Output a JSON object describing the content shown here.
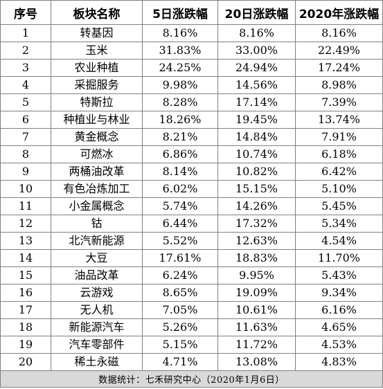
{
  "table": {
    "headers": [
      "序号",
      "板块名称",
      "5日涨跌幅",
      "20日涨跌幅",
      "2020年涨跌幅"
    ],
    "rows": [
      {
        "idx": "1",
        "name": "转基因",
        "d5": "8.16%",
        "d20": "8.16%",
        "y2020": "8.16%"
      },
      {
        "idx": "2",
        "name": "玉米",
        "d5": "31.83%",
        "d20": "33.00%",
        "y2020": "22.49%"
      },
      {
        "idx": "3",
        "name": "农业种植",
        "d5": "24.25%",
        "d20": "24.94%",
        "y2020": "17.24%"
      },
      {
        "idx": "4",
        "name": "采掘服务",
        "d5": "9.98%",
        "d20": "14.56%",
        "y2020": "8.98%"
      },
      {
        "idx": "5",
        "name": "特斯拉",
        "d5": "8.28%",
        "d20": "17.14%",
        "y2020": "7.39%"
      },
      {
        "idx": "6",
        "name": "种植业与林业",
        "d5": "18.26%",
        "d20": "19.45%",
        "y2020": "13.74%"
      },
      {
        "idx": "7",
        "name": "黄金概念",
        "d5": "8.21%",
        "d20": "14.84%",
        "y2020": "7.91%"
      },
      {
        "idx": "8",
        "name": "可燃冰",
        "d5": "6.86%",
        "d20": "10.74%",
        "y2020": "6.18%"
      },
      {
        "idx": "9",
        "name": "两桶油改革",
        "d5": "8.14%",
        "d20": "10.82%",
        "y2020": "6.42%"
      },
      {
        "idx": "10",
        "name": "有色冶炼加工",
        "d5": "6.02%",
        "d20": "15.15%",
        "y2020": "5.10%"
      },
      {
        "idx": "11",
        "name": "小金属概念",
        "d5": "5.74%",
        "d20": "14.26%",
        "y2020": "5.45%"
      },
      {
        "idx": "12",
        "name": "钴",
        "d5": "6.44%",
        "d20": "17.32%",
        "y2020": "5.34%"
      },
      {
        "idx": "13",
        "name": "北汽新能源",
        "d5": "5.52%",
        "d20": "12.63%",
        "y2020": "4.54%"
      },
      {
        "idx": "14",
        "name": "大豆",
        "d5": "17.61%",
        "d20": "18.83%",
        "y2020": "11.70%"
      },
      {
        "idx": "15",
        "name": "油品改革",
        "d5": "6.24%",
        "d20": "9.95%",
        "y2020": "5.43%"
      },
      {
        "idx": "16",
        "name": "云游戏",
        "d5": "8.65%",
        "d20": "19.09%",
        "y2020": "9.34%"
      },
      {
        "idx": "17",
        "name": "无人机",
        "d5": "7.05%",
        "d20": "10.61%",
        "y2020": "6.16%"
      },
      {
        "idx": "18",
        "name": "新能源汽车",
        "d5": "5.26%",
        "d20": "11.63%",
        "y2020": "4.65%"
      },
      {
        "idx": "19",
        "name": "汽车零部件",
        "d5": "5.15%",
        "d20": "11.72%",
        "y2020": "4.53%"
      },
      {
        "idx": "20",
        "name": "稀土永磁",
        "d5": "4.71%",
        "d20": "13.08%",
        "y2020": "4.83%"
      }
    ],
    "footer": "数据统计：七禾研究中心（2020年1月6日）"
  },
  "colors": {
    "grid": "#7f7f7f",
    "footer_bg": "#d9d9d9"
  }
}
